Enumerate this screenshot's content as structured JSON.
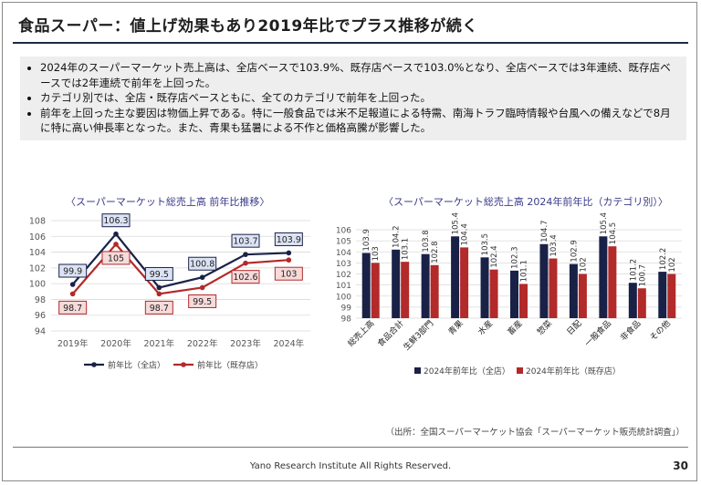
{
  "page": {
    "title": "食品スーパー：値上げ効果もあり2019年比でプラス推移が続く",
    "bullets": [
      "2024年のスーパーマーケット売上高は、全店ベースで103.9%、既存店ベースで103.0%となり、全店ベースでは3年連続、既存店ベースでは2年連続で前年を上回った。",
      "カテゴリ別では、全店・既存店ベースともに、全てのカテゴリで前年を上回った。",
      "前年を上回った主な要因は物価上昇である。特に一般食品では米不足報道による特需、南海トラフ臨時情報や台風への備えなどで8月に特に高い伸長率となった。また、青果も猛暑による不作と価格高騰が影響した。"
    ],
    "source": "（出所：全国スーパーマーケット協会「スーパーマーケット販売統計調査」）",
    "footer": "Yano Research Institute All Rights Reserved.",
    "page_number": "30"
  },
  "chart_data": [
    {
      "type": "line",
      "title": "〈スーパーマーケット総売上高 前年比推移〉",
      "categories": [
        "2019年",
        "2020年",
        "2021年",
        "2022年",
        "2023年",
        "2024年"
      ],
      "series": [
        {
          "name": "前年比（全店）",
          "color": "#1a2147",
          "values": [
            99.9,
            106.3,
            99.5,
            100.8,
            103.7,
            103.9
          ]
        },
        {
          "name": "前年比（既存店）",
          "color": "#b22a2a",
          "values": [
            98.7,
            105.0,
            98.7,
            99.5,
            102.6,
            103.0
          ]
        }
      ],
      "ylim": [
        94,
        108
      ],
      "yticks": [
        "94",
        "96",
        "98",
        "100",
        "102",
        "104",
        "106",
        "108"
      ],
      "grid": true,
      "legend": "bottom"
    },
    {
      "type": "bar",
      "title": "〈スーパーマーケット総売上高 2024年前年比（カテゴリ別）〉",
      "categories": [
        "総売上高",
        "食品合計",
        "生鮮3部門",
        "青果",
        "水産",
        "畜産",
        "惣菜",
        "日配",
        "一般食品",
        "非食品",
        "その他"
      ],
      "series": [
        {
          "name": "2024年前年比（全店）",
          "color": "#1a2147",
          "values": [
            103.9,
            104.2,
            103.8,
            105.4,
            103.5,
            102.3,
            104.7,
            102.9,
            105.4,
            101.2,
            102.2
          ]
        },
        {
          "name": "2024年前年比（既存店）",
          "color": "#b22a2a",
          "values": [
            103.0,
            103.1,
            102.8,
            104.4,
            102.4,
            101.1,
            103.4,
            102.0,
            104.5,
            100.7,
            102.0
          ]
        }
      ],
      "ylim": [
        98,
        106
      ],
      "yticks": [
        "98",
        "99",
        "100",
        "101",
        "102",
        "103",
        "104",
        "105",
        "106"
      ],
      "grid": true,
      "legend": "bottom"
    }
  ]
}
